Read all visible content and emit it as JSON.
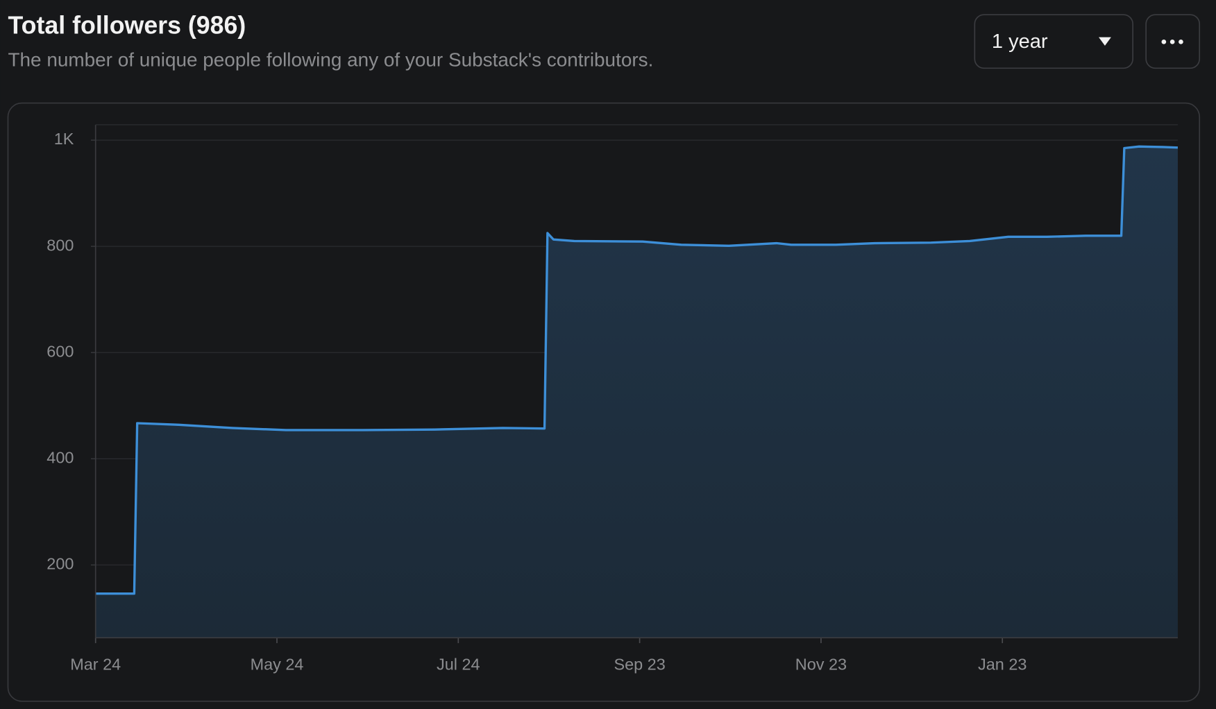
{
  "header": {
    "title": "Total followers (986)",
    "subtitle": "The number of unique people following any of your Substack's contributors.",
    "range_button": "1 year"
  },
  "chart_data": {
    "type": "area",
    "x": [
      0,
      13,
      14,
      28,
      46,
      64,
      90,
      114,
      137,
      151,
      152,
      154,
      161,
      184,
      197,
      213,
      229,
      234,
      249,
      262,
      281,
      294,
      307,
      320,
      333,
      345,
      346,
      351,
      359,
      364
    ],
    "series": [
      {
        "name": "Total followers",
        "color": "#3d8fd8",
        "values": [
          146,
          146,
          467,
          464,
          458,
          454,
          454,
          455,
          458,
          457,
          825,
          813,
          810,
          809,
          803,
          801,
          806,
          803,
          803,
          806,
          807,
          810,
          818,
          818,
          820,
          820,
          985,
          988,
          987,
          986
        ]
      }
    ],
    "xlim": [
      0,
      364
    ],
    "xticks": [
      {
        "value": 0,
        "label": "Mar 24"
      },
      {
        "value": 61,
        "label": "May 24"
      },
      {
        "value": 122,
        "label": "Jul 24"
      },
      {
        "value": 183,
        "label": "Sep 23"
      },
      {
        "value": 244,
        "label": "Nov 23"
      },
      {
        "value": 305,
        "label": "Jan 23"
      }
    ],
    "ylim": [
      63,
      1029
    ],
    "yticks": [
      200,
      400,
      600,
      800,
      {
        "value": 1000,
        "label": "1K"
      }
    ],
    "grid": true
  }
}
